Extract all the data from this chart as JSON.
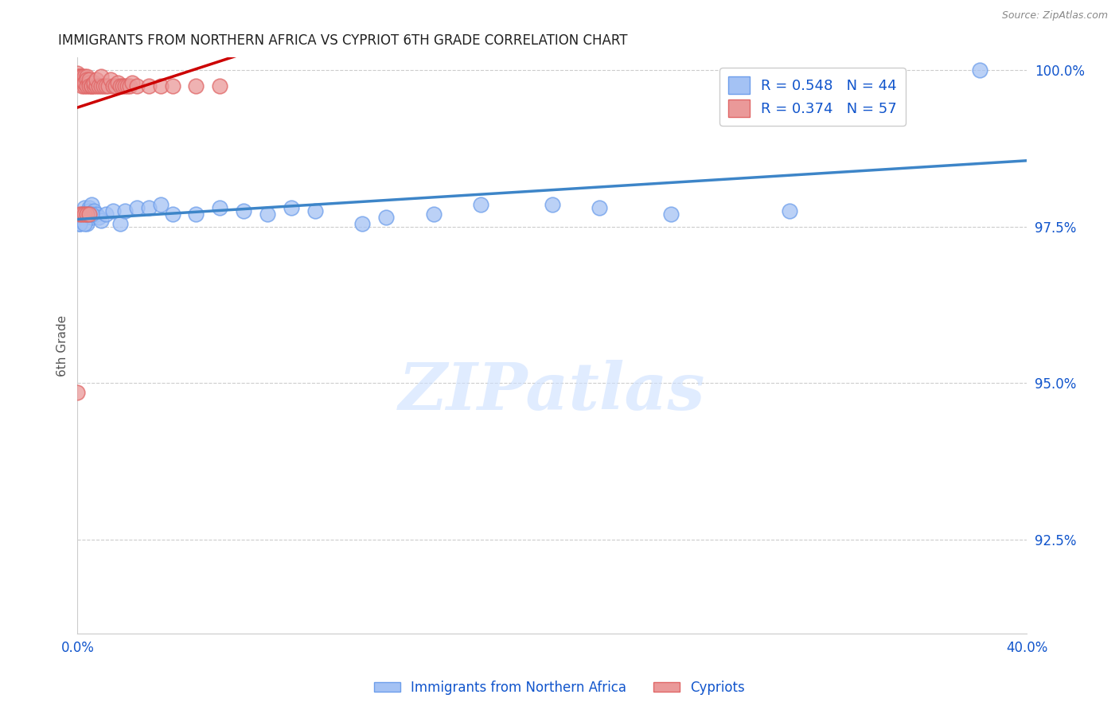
{
  "title": "IMMIGRANTS FROM NORTHERN AFRICA VS CYPRIOT 6TH GRADE CORRELATION CHART",
  "source": "Source: ZipAtlas.com",
  "ylabel_label": "6th Grade",
  "legend_blue_r": "R = 0.548",
  "legend_blue_n": "N = 44",
  "legend_pink_r": "R = 0.374",
  "legend_pink_n": "N = 57",
  "blue_color": "#a4c2f4",
  "blue_edge": "#6d9eeb",
  "pink_color": "#ea9999",
  "pink_edge": "#e06666",
  "trendline_blue": "#3d85c8",
  "trendline_pink": "#cc0000",
  "legend_text_color": "#1155cc",
  "watermark_text": "ZIPatlas",
  "blue_x": [
    0.001,
    0.001,
    0.002,
    0.002,
    0.003,
    0.003,
    0.004,
    0.004,
    0.005,
    0.005,
    0.006,
    0.006,
    0.007,
    0.008,
    0.009,
    0.01,
    0.012,
    0.015,
    0.018,
    0.02,
    0.025,
    0.03,
    0.035,
    0.04,
    0.05,
    0.06,
    0.07,
    0.08,
    0.09,
    0.1,
    0.12,
    0.13,
    0.15,
    0.17,
    0.2,
    0.22,
    0.25,
    0.3,
    0.001,
    0.003,
    0.005,
    0.38,
    0.004,
    0.006
  ],
  "blue_y": [
    0.9755,
    0.976,
    0.9765,
    0.977,
    0.9765,
    0.978,
    0.977,
    0.9755,
    0.978,
    0.9775,
    0.9785,
    0.9765,
    0.9775,
    0.977,
    0.9765,
    0.976,
    0.977,
    0.9775,
    0.9755,
    0.9775,
    0.978,
    0.978,
    0.9785,
    0.977,
    0.977,
    0.978,
    0.9775,
    0.977,
    0.978,
    0.9775,
    0.9755,
    0.9765,
    0.977,
    0.9785,
    0.9785,
    0.978,
    0.977,
    0.9775,
    0.9755,
    0.9755,
    0.977,
    1.0,
    0.977,
    0.977
  ],
  "pink_x": [
    0.0,
    0.0,
    0.0,
    0.001,
    0.001,
    0.001,
    0.001,
    0.001,
    0.001,
    0.002,
    0.002,
    0.002,
    0.002,
    0.003,
    0.003,
    0.003,
    0.003,
    0.004,
    0.004,
    0.004,
    0.005,
    0.005,
    0.005,
    0.006,
    0.006,
    0.007,
    0.007,
    0.008,
    0.008,
    0.009,
    0.01,
    0.01,
    0.011,
    0.012,
    0.013,
    0.014,
    0.015,
    0.016,
    0.017,
    0.018,
    0.019,
    0.02,
    0.021,
    0.022,
    0.023,
    0.025,
    0.03,
    0.035,
    0.04,
    0.05,
    0.06,
    0.001,
    0.002,
    0.003,
    0.004,
    0.005,
    0.0
  ],
  "pink_y": [
    0.999,
    0.9985,
    0.9995,
    0.999,
    0.9985,
    0.999,
    0.9985,
    0.9985,
    0.999,
    0.999,
    0.9985,
    0.999,
    0.9975,
    0.9985,
    0.999,
    0.9975,
    0.998,
    0.999,
    0.9985,
    0.9975,
    0.998,
    0.9985,
    0.9975,
    0.9975,
    0.9975,
    0.9975,
    0.998,
    0.9975,
    0.9985,
    0.9975,
    0.9975,
    0.999,
    0.9975,
    0.9975,
    0.9975,
    0.9985,
    0.9975,
    0.9975,
    0.998,
    0.9975,
    0.9975,
    0.9975,
    0.9975,
    0.9975,
    0.998,
    0.9975,
    0.9975,
    0.9975,
    0.9975,
    0.9975,
    0.9975,
    0.977,
    0.977,
    0.977,
    0.977,
    0.977,
    0.9485
  ],
  "xlim": [
    0.0,
    0.4
  ],
  "ylim": [
    0.91,
    1.002
  ],
  "yticks": [
    0.925,
    0.95,
    0.975,
    1.0
  ],
  "yticklabels": [
    "92.5%",
    "95.0%",
    "97.5%",
    "100.0%"
  ],
  "xticks": [
    0.0,
    0.05,
    0.1,
    0.15,
    0.2,
    0.25,
    0.3,
    0.35,
    0.4
  ],
  "xticklabels": [
    "0.0%",
    "",
    "",
    "",
    "",
    "",
    "",
    "",
    "40.0%"
  ]
}
